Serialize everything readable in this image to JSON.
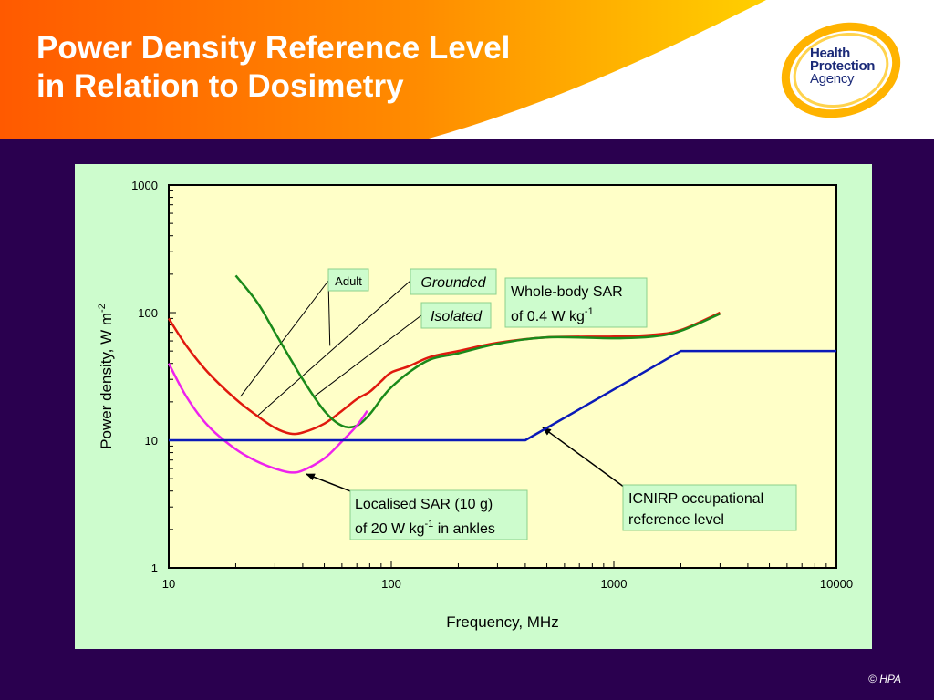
{
  "slide": {
    "title_line1": "Power Density Reference Level",
    "title_line2": "in Relation to Dosimetry",
    "logo": {
      "line1": "Health",
      "line2": "Protection",
      "line3": "Agency"
    },
    "copyright": "© HPA"
  },
  "colors": {
    "background": "#2a004f",
    "header_orange": "#ff6a00",
    "header_yellow": "#ffc400",
    "chart_panel": "#cdfccd",
    "plot_area": "#ffffc8",
    "adult_grounded": "#e0190e",
    "adult_isolated": "#1a8a1a",
    "localised": "#ee22ee",
    "icnirp": "#0a1ab8"
  },
  "chart_data": {
    "type": "line",
    "xlabel": "Frequency, MHz",
    "ylabel": "Power density, W m",
    "ylabel_sup": "-2",
    "x_scale": "log",
    "y_scale": "log",
    "xlim": [
      10,
      10000
    ],
    "ylim": [
      1,
      1000
    ],
    "x_ticks": [
      "10",
      "100",
      "1000",
      "10000"
    ],
    "y_ticks": [
      "1",
      "10",
      "100",
      "1000"
    ],
    "grid": false,
    "series": [
      {
        "key": "grounded",
        "color": "#e0190e",
        "x": [
          10,
          12,
          15,
          20,
          25,
          30,
          35,
          40,
          50,
          60,
          70,
          80,
          90,
          100,
          120,
          150,
          200,
          300,
          500,
          1000,
          1500,
          2000,
          3000
        ],
        "y": [
          90,
          55,
          34,
          21,
          15.5,
          12.5,
          11.3,
          11.5,
          13.5,
          17,
          21,
          24,
          29,
          34,
          38,
          45,
          50,
          58,
          64,
          65,
          67,
          73,
          100
        ]
      },
      {
        "key": "isolated",
        "color": "#1a8a1a",
        "x": [
          20,
          25,
          30,
          40,
          50,
          60,
          70,
          80,
          90,
          100,
          120,
          150,
          200,
          300,
          500,
          1000,
          1500,
          2000,
          3000
        ],
        "y": [
          195,
          120,
          70,
          30,
          17,
          13,
          13,
          16,
          21,
          26,
          34,
          43,
          48,
          57,
          64,
          63,
          65,
          72,
          98
        ]
      },
      {
        "key": "localised",
        "color": "#ee22ee",
        "x": [
          10,
          12,
          15,
          20,
          25,
          30,
          35,
          40,
          50,
          60,
          70,
          78
        ],
        "y": [
          40,
          22,
          13,
          8.5,
          6.8,
          6,
          5.6,
          5.8,
          7.2,
          9.8,
          13,
          17
        ]
      },
      {
        "key": "icnirp",
        "color": "#0a1ab8",
        "x": [
          10,
          400,
          2000,
          10000
        ],
        "y": [
          10,
          10,
          50,
          50
        ]
      }
    ],
    "annotations": [
      {
        "key": "adult",
        "text": "Adult"
      },
      {
        "key": "grounded",
        "text": "Grounded"
      },
      {
        "key": "isolated",
        "text": "Isolated"
      },
      {
        "key": "wholebody",
        "line1": "Whole-body SAR",
        "line2": "of 0.4 W kg",
        "line2_sup": "-1"
      },
      {
        "key": "localised",
        "line1": "Localised SAR (10 g)",
        "line2_pre": "of 20 W kg",
        "line2_sup": "-1",
        "line2_post": " in ankles"
      },
      {
        "key": "icnirp",
        "line1": "ICNIRP occupational",
        "line2": "reference level"
      }
    ]
  }
}
